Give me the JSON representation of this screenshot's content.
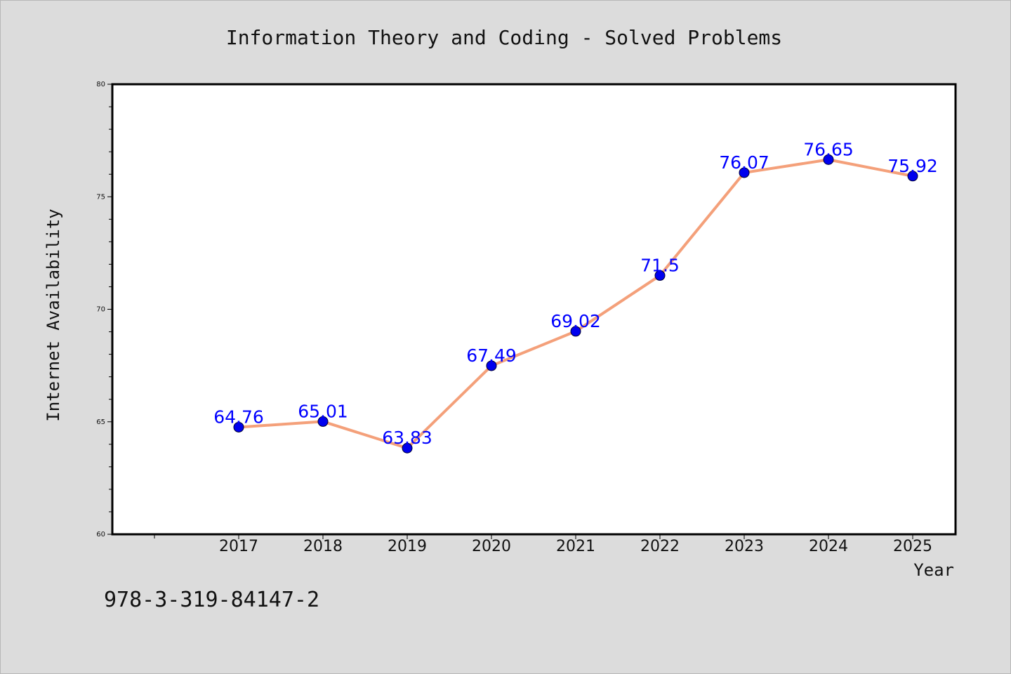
{
  "chart_data": {
    "type": "line",
    "title": "Information Theory and Coding - Solved Problems",
    "xlabel": "Year",
    "ylabel": "Internet Availability",
    "x": [
      "2017",
      "2018",
      "2019",
      "2020",
      "2021",
      "2022",
      "2023",
      "2024",
      "2025"
    ],
    "series": [
      {
        "values": [
          64.76,
          65.01,
          63.83,
          67.49,
          69.02,
          71.5,
          76.07,
          76.65,
          75.92
        ],
        "data_labels": [
          "64.76",
          "65.01",
          "63.83",
          "67.49",
          "69.02",
          "71.5",
          "76.07",
          "76.65",
          "75.92"
        ]
      }
    ],
    "ylim": [
      60,
      80
    ],
    "yticks": [
      "60",
      "65",
      "70",
      "75",
      "80"
    ],
    "grid": false,
    "legend": "none",
    "colors": {
      "line": "#f4a07a",
      "marker": "#0000ee",
      "label": "#0000ff"
    }
  },
  "footer": {
    "isbn": "978-3-319-84147-2"
  }
}
